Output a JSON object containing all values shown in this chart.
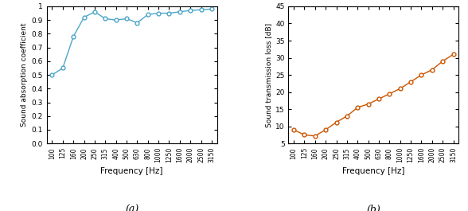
{
  "freq_labels": [
    100,
    125,
    160,
    200,
    250,
    315,
    400,
    500,
    630,
    800,
    1000,
    1250,
    1600,
    2000,
    2500,
    3150
  ],
  "absorption_values": [
    0.5,
    0.55,
    0.78,
    0.92,
    0.96,
    0.91,
    0.9,
    0.91,
    0.88,
    0.94,
    0.95,
    0.95,
    0.96,
    0.97,
    0.975,
    0.98
  ],
  "transmission_values": [
    9.0,
    7.5,
    7.2,
    9.0,
    11.2,
    13.0,
    15.5,
    16.5,
    18.0,
    19.5,
    21.0,
    23.0,
    25.0,
    26.5,
    29.0,
    31.0
  ],
  "color_a": "#4da6c8",
  "color_b": "#cc5500",
  "ylabel_a": "Sound absorption coefficient",
  "ylabel_b": "Sound transmission loss [dB]",
  "xlabel": "Frequency [Hz]",
  "label_a": "(a)",
  "label_b": "(b)",
  "ylim_a": [
    0,
    1.0
  ],
  "ylim_b": [
    5,
    45
  ],
  "yticks_a": [
    0,
    0.1,
    0.2,
    0.3,
    0.4,
    0.5,
    0.6,
    0.7,
    0.8,
    0.9,
    1.0
  ],
  "yticks_b": [
    5,
    10,
    15,
    20,
    25,
    30,
    35,
    40,
    45
  ],
  "fig_width": 5.88,
  "fig_height": 2.65,
  "dpi": 100
}
